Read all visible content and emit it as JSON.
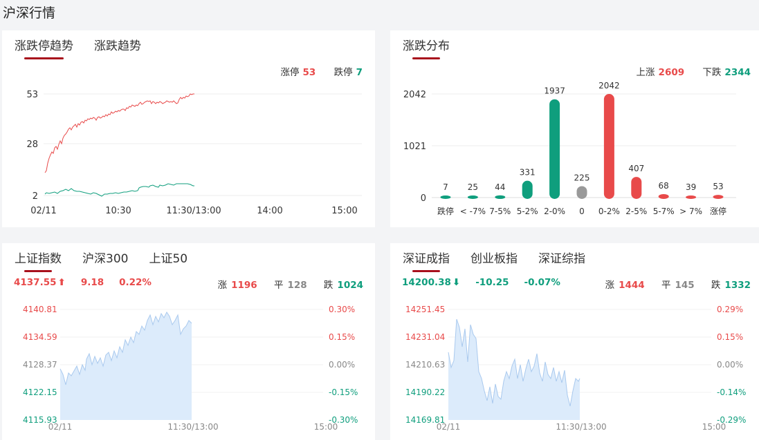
{
  "page_title": "沪深行情",
  "trend": {
    "tabs": [
      "涨跌停趋势",
      "涨跌趋势"
    ],
    "limit_up_label": "涨停",
    "limit_up_value": "53",
    "limit_down_label": "跌停",
    "limit_down_value": "7",
    "y_ticks": [
      "53",
      "28",
      "2"
    ],
    "x_ticks": [
      "02/11",
      "10:30",
      "11:30/13:00",
      "14:00",
      "15:00"
    ]
  },
  "dist": {
    "tab": "涨跌分布",
    "up_label": "上涨",
    "up_value": "2609",
    "down_label": "下跌",
    "down_value": "2344",
    "y_ticks": [
      "2042",
      "1021",
      "0"
    ]
  },
  "chart_data": {
    "type": "bar",
    "categories": [
      "跌停",
      "< -7%",
      "7-5%",
      "5-2%",
      "2-0%",
      "0",
      "0-2%",
      "2-5%",
      "5-7%",
      "> 7%",
      "涨停"
    ],
    "values": [
      7,
      25,
      44,
      331,
      1937,
      225,
      2042,
      407,
      68,
      39,
      53
    ],
    "colors": [
      "#0f9e7d",
      "#0f9e7d",
      "#0f9e7d",
      "#0f9e7d",
      "#0f9e7d",
      "#999999",
      "#e84a4a",
      "#e84a4a",
      "#e84a4a",
      "#e84a4a",
      "#e84a4a"
    ],
    "ylim": [
      0,
      2042
    ]
  },
  "sh": {
    "tabs": [
      "上证指数",
      "沪深300",
      "上证50"
    ],
    "price": "4137.55",
    "arrow": "⬆",
    "change": "9.18",
    "pct": "0.22%",
    "up_label": "涨",
    "up": "1196",
    "flat_label": "平",
    "flat": "128",
    "down_label": "跌",
    "down": "1024",
    "left_ticks": [
      "4140.81",
      "4134.59",
      "4128.37",
      "4122.15",
      "4115.93"
    ],
    "right_ticks": [
      "0.30%",
      "0.15%",
      "0.00%",
      "-0.15%",
      "-0.30%"
    ],
    "x_ticks": [
      "02/11",
      "11:30/13:00",
      "15:00"
    ]
  },
  "sz": {
    "tabs": [
      "深证成指",
      "创业板指",
      "深证综指"
    ],
    "price": "14200.38",
    "arrow": "⬇",
    "change": "-10.25",
    "pct": "-0.07%",
    "up_label": "涨",
    "up": "1444",
    "flat_label": "平",
    "flat": "145",
    "down_label": "跌",
    "down": "1332",
    "left_ticks": [
      "14251.45",
      "14231.04",
      "14210.63",
      "14190.22",
      "14169.81"
    ],
    "right_ticks": [
      "0.29%",
      "0.15%",
      "0.00%",
      "-0.14%",
      "-0.29%"
    ],
    "x_ticks": [
      "02/11",
      "11:30/13:00",
      "15:00"
    ]
  },
  "colors": {
    "up": "#e84a4a",
    "down": "#0f9e7d",
    "flat": "#999999",
    "accent": "#a8101c",
    "area": "#dcebfb"
  }
}
